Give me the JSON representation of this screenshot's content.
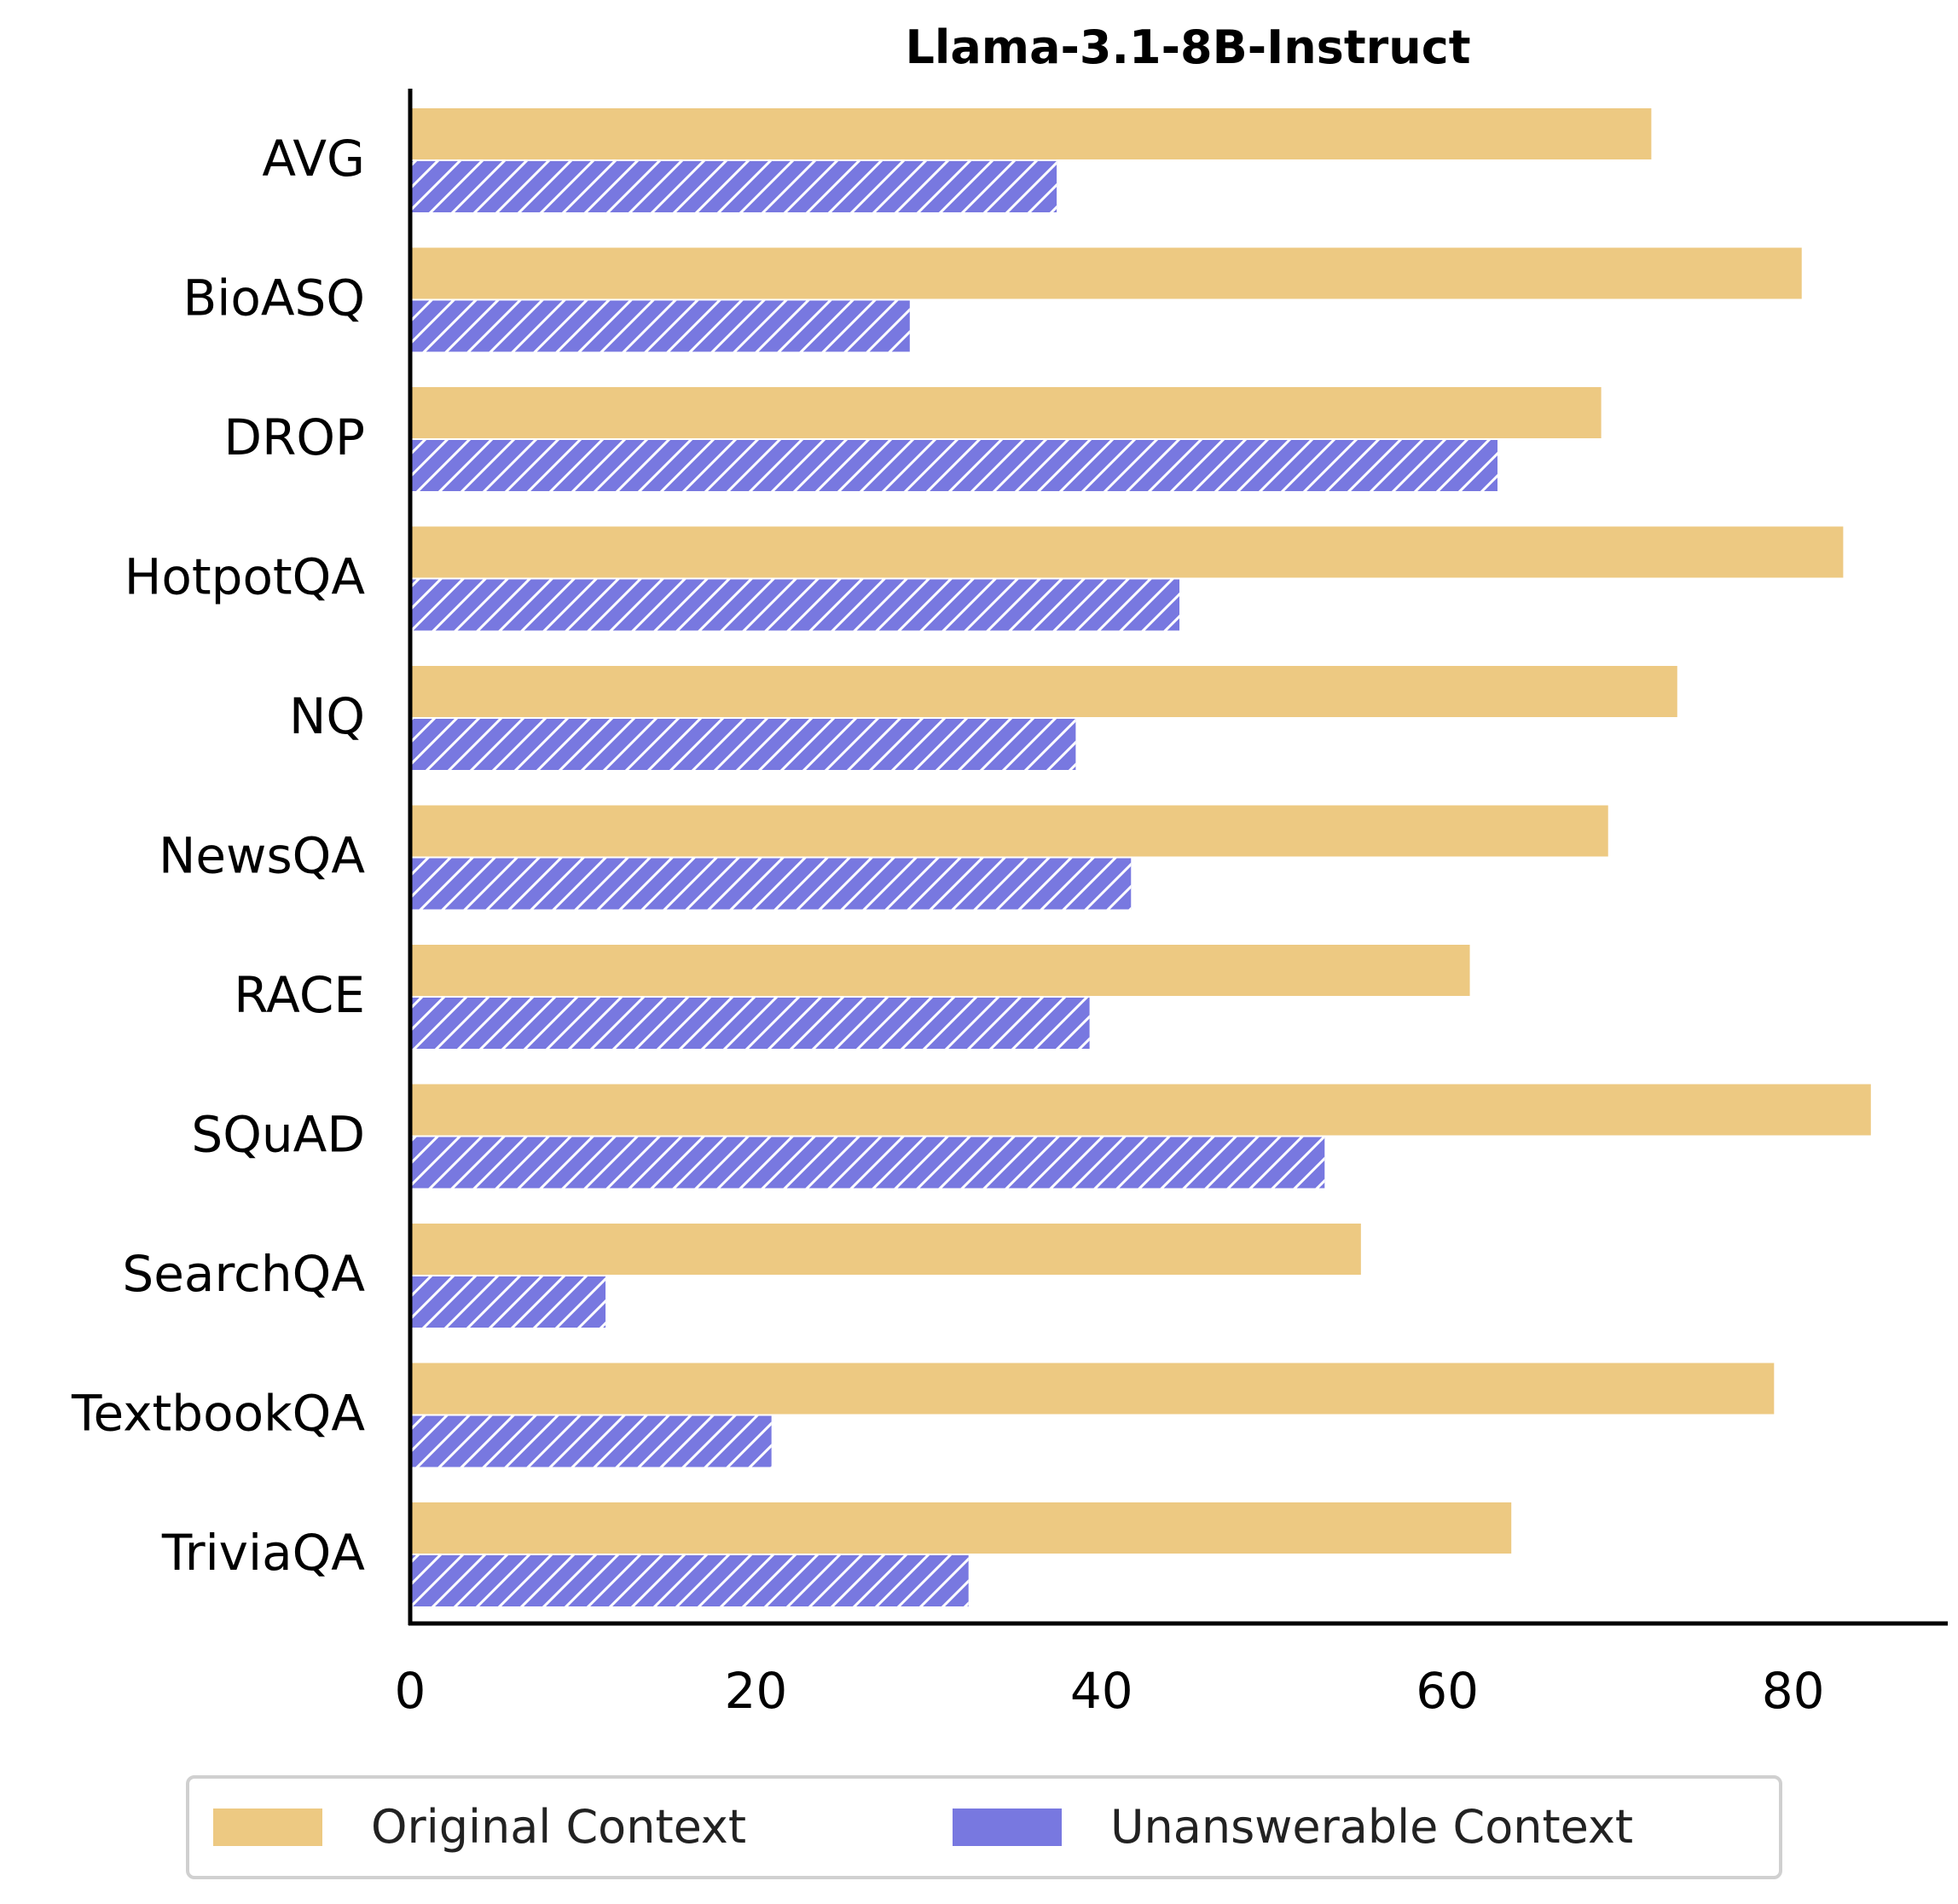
{
  "chart_data": {
    "type": "bar",
    "orientation": "horizontal",
    "title": "Llama-3.1-8B-Instruct",
    "xlabel": "",
    "ylabel": "",
    "xlim": [
      0,
      89
    ],
    "x_ticks": [
      0,
      20,
      40,
      60,
      80
    ],
    "grid": false,
    "legend_position": "bottom-center",
    "categories": [
      "AVG",
      "BioASQ",
      "DROP",
      "HotpotQA",
      "NQ",
      "NewsQA",
      "RACE",
      "SQuAD",
      "SearchQA",
      "TextbookQA",
      "TriviaQA"
    ],
    "series": [
      {
        "name": "Original Context",
        "color": "#EDC982",
        "hatch": "none",
        "values": [
          71.8,
          80.5,
          68.9,
          82.9,
          73.3,
          69.3,
          61.3,
          84.5,
          55.0,
          78.9,
          63.7
        ]
      },
      {
        "name": "Unanswerable Context",
        "color": "#7878E0",
        "hatch": "diagonal",
        "values": [
          37.4,
          28.9,
          62.9,
          44.5,
          38.5,
          41.7,
          39.3,
          52.9,
          11.3,
          20.9,
          32.3
        ]
      }
    ]
  }
}
